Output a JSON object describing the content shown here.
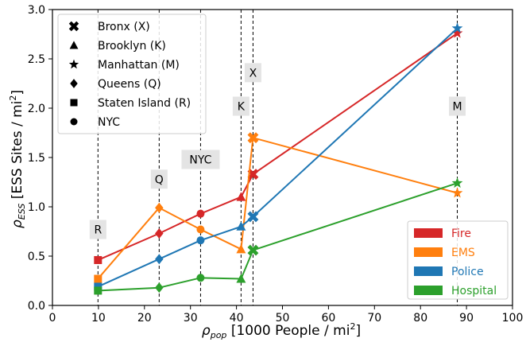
{
  "chart_data": {
    "type": "line",
    "title": "",
    "xlabel_main": "ρ",
    "xlabel_sub": "pop",
    "xlabel_rest": " [1000 People / mi",
    "xlabel_sup": "2",
    "xlabel_end": "]",
    "ylabel_main": "ρ",
    "ylabel_sub": "ESS",
    "ylabel_rest": " [ESS Sites / mi",
    "ylabel_sup": "2",
    "ylabel_end": "]",
    "xlim": [
      0,
      100
    ],
    "ylim": [
      0,
      3.0
    ],
    "xticks": [
      0,
      10,
      20,
      30,
      40,
      50,
      60,
      70,
      80,
      90,
      100
    ],
    "yticks": [
      0.0,
      0.5,
      1.0,
      1.5,
      2.0,
      2.5,
      3.0
    ],
    "ytick_labels": [
      "0.0",
      "0.5",
      "1.0",
      "1.5",
      "2.0",
      "2.5",
      "3.0"
    ],
    "grid": false,
    "boroughs": [
      {
        "label": "R",
        "x": 9.9,
        "label_y": 0.77
      },
      {
        "label": "Q",
        "x": 23.2,
        "label_y": 1.28
      },
      {
        "label": "NYC",
        "x": 32.2,
        "label_y": 1.48
      },
      {
        "label": "K",
        "x": 41.0,
        "label_y": 2.02
      },
      {
        "label": "X",
        "x": 43.6,
        "label_y": 2.36
      },
      {
        "label": "M",
        "x": 88.0,
        "label_y": 2.02
      }
    ],
    "marker_legend": {
      "position": "top-left",
      "entries": [
        {
          "marker": "x",
          "label": "Bronx (X)"
        },
        {
          "marker": "triangle",
          "label": "Brooklyn (K)"
        },
        {
          "marker": "star",
          "label": "Manhattan (M)"
        },
        {
          "marker": "diamond",
          "label": "Queens (Q)"
        },
        {
          "marker": "square",
          "label": "Staten Island (R)"
        },
        {
          "marker": "circle",
          "label": "NYC"
        }
      ]
    },
    "series_legend": {
      "position": "bottom-right"
    },
    "series": [
      {
        "name": "Fire",
        "color": "#d62728",
        "points": [
          {
            "x": 9.9,
            "y": 0.46,
            "marker": "square"
          },
          {
            "x": 23.2,
            "y": 0.73,
            "marker": "diamond"
          },
          {
            "x": 32.2,
            "y": 0.93,
            "marker": "circle"
          },
          {
            "x": 41.0,
            "y": 1.1,
            "marker": "triangle"
          },
          {
            "x": 43.6,
            "y": 1.33,
            "marker": "x"
          },
          {
            "x": 88.0,
            "y": 2.76,
            "marker": "star"
          }
        ]
      },
      {
        "name": "EMS",
        "color": "#ff7f0e",
        "points": [
          {
            "x": 9.9,
            "y": 0.27,
            "marker": "square"
          },
          {
            "x": 23.2,
            "y": 0.99,
            "marker": "diamond"
          },
          {
            "x": 32.2,
            "y": 0.77,
            "marker": "circle"
          },
          {
            "x": 41.0,
            "y": 0.57,
            "marker": "triangle"
          },
          {
            "x": 43.6,
            "y": 1.7,
            "marker": "x"
          },
          {
            "x": 88.0,
            "y": 1.14,
            "marker": "star"
          }
        ]
      },
      {
        "name": "Police",
        "color": "#1f77b4",
        "points": [
          {
            "x": 9.9,
            "y": 0.19,
            "marker": "square"
          },
          {
            "x": 23.2,
            "y": 0.47,
            "marker": "diamond"
          },
          {
            "x": 32.2,
            "y": 0.66,
            "marker": "circle"
          },
          {
            "x": 41.0,
            "y": 0.8,
            "marker": "triangle"
          },
          {
            "x": 43.6,
            "y": 0.9,
            "marker": "x"
          },
          {
            "x": 88.0,
            "y": 2.81,
            "marker": "star"
          }
        ]
      },
      {
        "name": "Hospital",
        "color": "#2ca02c",
        "points": [
          {
            "x": 9.9,
            "y": 0.15,
            "marker": "square"
          },
          {
            "x": 23.2,
            "y": 0.18,
            "marker": "diamond"
          },
          {
            "x": 32.2,
            "y": 0.28,
            "marker": "circle"
          },
          {
            "x": 41.0,
            "y": 0.27,
            "marker": "triangle"
          },
          {
            "x": 43.6,
            "y": 0.56,
            "marker": "x"
          },
          {
            "x": 88.0,
            "y": 1.24,
            "marker": "star"
          }
        ]
      }
    ]
  }
}
